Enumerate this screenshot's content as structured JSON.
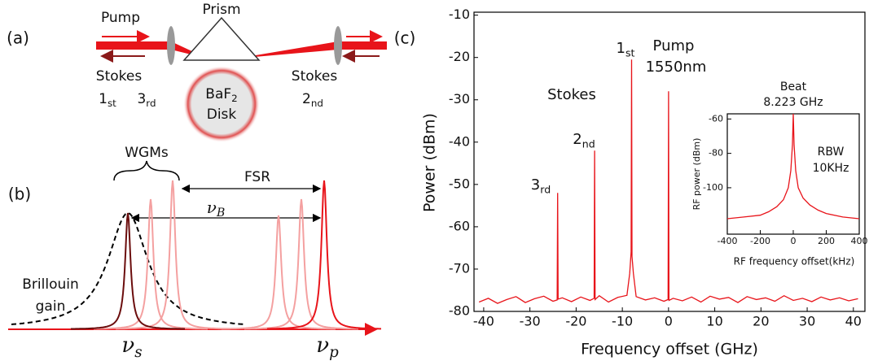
{
  "panels": {
    "a": {
      "label": "(a)",
      "pump": "Pump",
      "prism": "Prism",
      "stokes_left": "Stokes",
      "order_1": {
        "text": "1",
        "sub": "st"
      },
      "order_3": {
        "text": "3",
        "sub": "rd"
      },
      "disk_material": {
        "text": "BaF",
        "sub": "2"
      },
      "disk": "Disk",
      "stokes_right": "Stokes",
      "order_2": {
        "text": "2",
        "sub": "nd"
      }
    },
    "b": {
      "label": "(b)",
      "wgms": "WGMs",
      "fsr": "FSR",
      "nu_b": {
        "text": "ν",
        "sub": "B"
      },
      "gain_1": "Brillouin",
      "gain_2": "gain",
      "nu_s": {
        "text": "ν",
        "sub": "s"
      },
      "nu_p": {
        "text": "ν",
        "sub": "p"
      }
    }
  },
  "chart_data": [
    {
      "type": "line",
      "panel_label": "(c)",
      "xlabel": "Frequency offset (GHz)",
      "ylabel": "Power (dBm)",
      "color": "#e8141a",
      "x": [
        -41,
        -39,
        -37,
        -35,
        -33,
        -31,
        -29,
        -27,
        -25,
        -24.1,
        -24,
        -23.9,
        -23,
        -21,
        -19,
        -17,
        -16.1,
        -16,
        -15.9,
        -15,
        -13,
        -11,
        -9,
        -8.4,
        -8.1,
        -8,
        -7.9,
        -7.6,
        -7,
        -5,
        -3,
        -1,
        -0.1,
        0,
        0.1,
        1,
        3,
        5,
        7,
        9,
        11,
        13,
        15,
        17,
        19,
        21,
        23,
        25,
        27,
        29,
        31,
        33,
        35,
        37,
        39,
        41
      ],
      "values": [
        -77.8,
        -76.9,
        -78.1,
        -77.2,
        -76.5,
        -77.9,
        -77.0,
        -76.4,
        -77.6,
        -77.3,
        -52,
        -77.1,
        -76.8,
        -77.7,
        -76.6,
        -77.4,
        -76.9,
        -42,
        -77.2,
        -76.3,
        -77.8,
        -76.7,
        -76.2,
        -71,
        -66,
        -20.5,
        -67,
        -71,
        -76.5,
        -77.3,
        -76.8,
        -77.6,
        -77.2,
        -28,
        -77.4,
        -76.9,
        -77.5,
        -76.6,
        -77.8,
        -76.4,
        -77.1,
        -76.7,
        -77.9,
        -76.5,
        -77.2,
        -76.8,
        -77.6,
        -76.3,
        -77.4,
        -76.9,
        -77.7,
        -76.6,
        -77.3,
        -76.8,
        -77.5,
        -77.0
      ],
      "xlim": [
        -42.1,
        42.5
      ],
      "xticks": [
        -40,
        -30,
        -20,
        -10,
        0,
        10,
        20,
        30,
        40
      ],
      "ylim": [
        -80,
        -9.3
      ],
      "yticks": [
        -80,
        -70,
        -60,
        -50,
        -40,
        -30,
        -20,
        -10
      ],
      "stokes": "Stokes",
      "orders": [
        {
          "text": "3",
          "sub": "rd"
        },
        {
          "text": "2",
          "sub": "nd"
        },
        {
          "text": "1",
          "sub": "st"
        }
      ],
      "pump": "Pump",
      "pump_wavelength": "1550nm"
    },
    {
      "type": "line",
      "xlabel": "RF frequency offset(kHz)",
      "ylabel": "RF power (dBm)",
      "color": "#e8141a",
      "x": [
        -400,
        -300,
        -200,
        -150,
        -100,
        -60,
        -30,
        -15,
        -5,
        0,
        5,
        15,
        30,
        60,
        100,
        150,
        200,
        300,
        400
      ],
      "values": [
        -118,
        -117,
        -116,
        -114,
        -111,
        -107,
        -100,
        -90,
        -75,
        -57,
        -75,
        -90,
        -100,
        -106,
        -110,
        -113,
        -115,
        -117,
        -118
      ],
      "xlim": [
        -400,
        400
      ],
      "xticks": [
        -400,
        -200,
        0,
        200,
        400
      ],
      "ylim": [
        -127,
        -57
      ],
      "yticks": [
        -60,
        -80,
        -100
      ],
      "beat": "Beat",
      "beat_freq": "8.223 GHz",
      "rbw": "RBW",
      "rbw_value": "10KHz"
    }
  ]
}
